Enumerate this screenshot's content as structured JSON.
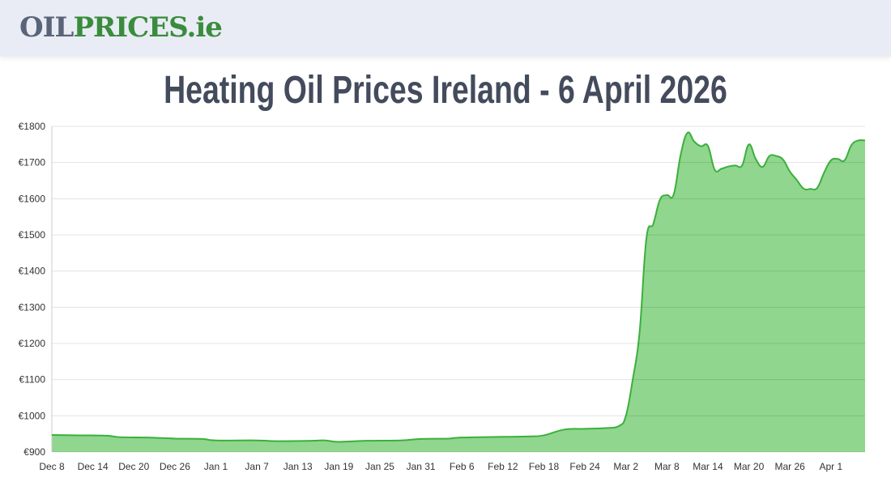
{
  "header": {
    "logo_part1": "OIL",
    "logo_part2": "PRICES.ie"
  },
  "title": "Heating Oil Prices Ireland - 6 April 2026",
  "chart_data": {
    "type": "area",
    "title": "Heating Oil Prices Ireland - 6 April 2026",
    "xlabel": "",
    "ylabel": "",
    "ylim": [
      900,
      1800
    ],
    "y_ticks": [
      "€900",
      "€1000",
      "€1100",
      "€1200",
      "€1300",
      "€1400",
      "€1500",
      "€1600",
      "€1700",
      "€1800"
    ],
    "x_ticks": [
      "Dec 8",
      "Dec 14",
      "Dec 20",
      "Dec 26",
      "Jan 1",
      "Jan 7",
      "Jan 13",
      "Jan 19",
      "Jan 25",
      "Jan 31",
      "Feb 6",
      "Feb 12",
      "Feb 18",
      "Feb 24",
      "Mar 2",
      "Mar 8",
      "Mar 14",
      "Mar 20",
      "Mar 26",
      "Apr 1"
    ],
    "grid": true,
    "colors": {
      "line": "#3bb03b",
      "fill": "#90d68f",
      "grid": "#e0e0e0"
    },
    "series": [
      {
        "points": [
          [
            "2025-12-08",
            947
          ],
          [
            "2025-12-12",
            946
          ],
          [
            "2025-12-16",
            945
          ],
          [
            "2025-12-18",
            941
          ],
          [
            "2025-12-22",
            940
          ],
          [
            "2025-12-26",
            937
          ],
          [
            "2025-12-30",
            936
          ],
          [
            "2026-01-01",
            932
          ],
          [
            "2026-01-07",
            932
          ],
          [
            "2026-01-10",
            930
          ],
          [
            "2026-01-15",
            931
          ],
          [
            "2026-01-17",
            932
          ],
          [
            "2026-01-19",
            928
          ],
          [
            "2026-01-23",
            931
          ],
          [
            "2026-01-28",
            932
          ],
          [
            "2026-01-31",
            936
          ],
          [
            "2026-02-04",
            937
          ],
          [
            "2026-02-06",
            940
          ],
          [
            "2026-02-12",
            942
          ],
          [
            "2026-02-16",
            943
          ],
          [
            "2026-02-18",
            946
          ],
          [
            "2026-02-21",
            962
          ],
          [
            "2026-02-24",
            964
          ],
          [
            "2026-02-27",
            966
          ],
          [
            "2026-03-01",
            972
          ],
          [
            "2026-03-02",
            1000
          ],
          [
            "2026-03-03",
            1100
          ],
          [
            "2026-03-04",
            1230
          ],
          [
            "2026-03-05",
            1490
          ],
          [
            "2026-03-06",
            1530
          ],
          [
            "2026-03-07",
            1598
          ],
          [
            "2026-03-08",
            1610
          ],
          [
            "2026-03-09",
            1612
          ],
          [
            "2026-03-10",
            1720
          ],
          [
            "2026-03-11",
            1782
          ],
          [
            "2026-03-12",
            1758
          ],
          [
            "2026-03-13",
            1745
          ],
          [
            "2026-03-14",
            1746
          ],
          [
            "2026-03-15",
            1680
          ],
          [
            "2026-03-16",
            1683
          ],
          [
            "2026-03-17",
            1689
          ],
          [
            "2026-03-18",
            1692
          ],
          [
            "2026-03-19",
            1692
          ],
          [
            "2026-03-20",
            1750
          ],
          [
            "2026-03-21",
            1710
          ],
          [
            "2026-03-22",
            1688
          ],
          [
            "2026-03-23",
            1718
          ],
          [
            "2026-03-24",
            1718
          ],
          [
            "2026-03-25",
            1708
          ],
          [
            "2026-03-26",
            1675
          ],
          [
            "2026-03-27",
            1652
          ],
          [
            "2026-03-28",
            1628
          ],
          [
            "2026-03-29",
            1627
          ],
          [
            "2026-03-30",
            1630
          ],
          [
            "2026-03-31",
            1672
          ],
          [
            "2026-04-01",
            1706
          ],
          [
            "2026-04-02",
            1710
          ],
          [
            "2026-04-03",
            1706
          ],
          [
            "2026-04-04",
            1748
          ],
          [
            "2026-04-05",
            1761
          ],
          [
            "2026-04-06",
            1761
          ]
        ]
      }
    ]
  }
}
